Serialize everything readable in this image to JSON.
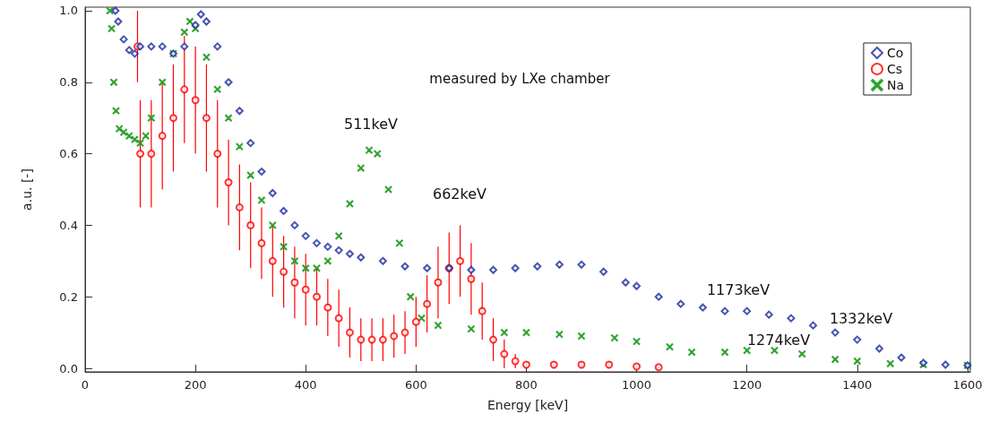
{
  "chart_data": {
    "type": "scatter",
    "xlabel": "Energy [keV]",
    "ylabel": "a.u. [-]",
    "xlim": [
      0,
      1605
    ],
    "xticks": [
      0,
      200,
      400,
      600,
      800,
      1000,
      1200,
      1400,
      1600
    ],
    "ylim": [
      -0.01,
      1.01
    ],
    "yticks": [
      {
        "value": 0,
        "label": "0.0"
      },
      {
        "value": 0.2,
        "label": "0.2"
      },
      {
        "value": 0.4,
        "label": "0.4"
      },
      {
        "value": 0.6,
        "label": "0.6"
      },
      {
        "value": 0.8,
        "label": "0.8"
      },
      {
        "value": 1,
        "label": "1.0"
      }
    ],
    "grid": false,
    "legend": "top right",
    "annotations": [
      "measured by LXe chamber",
      "511keV",
      "662keV",
      "1173keV",
      "1332keV",
      "1274keV"
    ],
    "series": [
      {
        "name": "Co",
        "color": "#1a2a9c",
        "marker": "diamond",
        "x": [
          55,
          60,
          70,
          80,
          90,
          100,
          120,
          140,
          160,
          180,
          200,
          210,
          220,
          240,
          260,
          280,
          300,
          320,
          340,
          360,
          380,
          400,
          420,
          440,
          460,
          480,
          500,
          540,
          580,
          620,
          660,
          700,
          740,
          780,
          820,
          860,
          900,
          940,
          980,
          1000,
          1040,
          1080,
          1120,
          1160,
          1200,
          1240,
          1280,
          1320,
          1360,
          1400,
          1440,
          1480,
          1520,
          1560,
          1600
        ],
        "values": [
          1.0,
          0.97,
          0.92,
          0.89,
          0.88,
          0.9,
          0.9,
          0.9,
          0.88,
          0.9,
          0.96,
          0.99,
          0.97,
          0.9,
          0.8,
          0.72,
          0.63,
          0.55,
          0.49,
          0.44,
          0.4,
          0.37,
          0.35,
          0.34,
          0.33,
          0.32,
          0.31,
          0.3,
          0.285,
          0.28,
          0.28,
          0.275,
          0.275,
          0.28,
          0.285,
          0.29,
          0.29,
          0.27,
          0.24,
          0.23,
          0.2,
          0.18,
          0.17,
          0.16,
          0.16,
          0.15,
          0.14,
          0.12,
          0.1,
          0.08,
          0.055,
          0.03,
          0.015,
          0.01,
          0.008
        ]
      },
      {
        "name": "Cs",
        "color": "#ff0000",
        "marker": "circle",
        "x": [
          95,
          100,
          120,
          140,
          160,
          180,
          200,
          220,
          240,
          260,
          280,
          300,
          320,
          340,
          360,
          380,
          400,
          420,
          440,
          460,
          480,
          500,
          520,
          540,
          560,
          580,
          600,
          620,
          640,
          660,
          680,
          700,
          720,
          740,
          760,
          780,
          800,
          850,
          900,
          950,
          1000,
          1040
        ],
        "values": [
          0.9,
          0.6,
          0.6,
          0.65,
          0.7,
          0.78,
          0.75,
          0.7,
          0.6,
          0.52,
          0.45,
          0.4,
          0.35,
          0.3,
          0.27,
          0.24,
          0.22,
          0.2,
          0.17,
          0.14,
          0.1,
          0.08,
          0.08,
          0.08,
          0.09,
          0.1,
          0.13,
          0.18,
          0.24,
          0.28,
          0.3,
          0.25,
          0.16,
          0.08,
          0.04,
          0.02,
          0.01,
          0.01,
          0.01,
          0.01,
          0.005,
          0.003
        ],
        "errors": [
          0.1,
          0.15,
          0.15,
          0.15,
          0.15,
          0.15,
          0.15,
          0.15,
          0.15,
          0.12,
          0.12,
          0.12,
          0.1,
          0.1,
          0.1,
          0.1,
          0.1,
          0.08,
          0.08,
          0.08,
          0.07,
          0.06,
          0.06,
          0.06,
          0.06,
          0.06,
          0.07,
          0.08,
          0.1,
          0.1,
          0.1,
          0.1,
          0.08,
          0.06,
          0.04,
          0.02,
          0.01,
          0.01,
          0.01,
          0.01,
          0.005,
          0.003
        ]
      },
      {
        "name": "Na",
        "color": "#1a9a1a",
        "marker": "cross",
        "x": [
          45,
          48,
          52,
          56,
          62,
          70,
          80,
          90,
          100,
          110,
          120,
          140,
          160,
          180,
          190,
          200,
          220,
          240,
          260,
          280,
          300,
          320,
          340,
          360,
          380,
          400,
          420,
          440,
          460,
          480,
          500,
          515,
          530,
          550,
          570,
          590,
          610,
          640,
          700,
          760,
          800,
          860,
          900,
          960,
          1000,
          1060,
          1100,
          1160,
          1200,
          1250,
          1300,
          1360,
          1400,
          1460,
          1520,
          1600
        ],
        "values": [
          1.0,
          0.95,
          0.8,
          0.72,
          0.67,
          0.66,
          0.65,
          0.64,
          0.63,
          0.65,
          0.7,
          0.8,
          0.88,
          0.94,
          0.97,
          0.95,
          0.87,
          0.78,
          0.7,
          0.62,
          0.54,
          0.47,
          0.4,
          0.34,
          0.3,
          0.28,
          0.28,
          0.3,
          0.37,
          0.46,
          0.56,
          0.61,
          0.6,
          0.5,
          0.35,
          0.2,
          0.14,
          0.12,
          0.11,
          0.1,
          0.1,
          0.095,
          0.09,
          0.085,
          0.075,
          0.06,
          0.045,
          0.045,
          0.05,
          0.05,
          0.04,
          0.025,
          0.02,
          0.013,
          0.01,
          0.008
        ]
      }
    ]
  }
}
